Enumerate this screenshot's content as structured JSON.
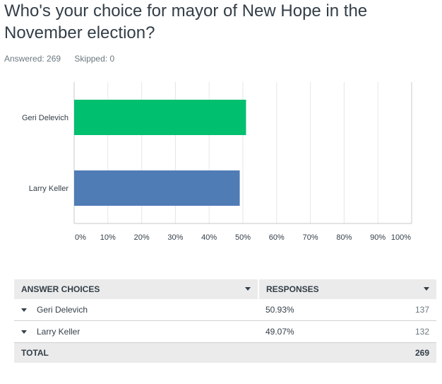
{
  "question": {
    "title": "Who's your choice for mayor of New Hope in the November election?",
    "answered": "Answered: 269",
    "skipped": "Skipped: 0"
  },
  "chart_data": {
    "type": "bar",
    "orientation": "horizontal",
    "categories": [
      "Geri Delevich",
      "Larry Keller"
    ],
    "values": [
      50.93,
      49.07
    ],
    "colors": [
      "#00bf6f",
      "#507cb6"
    ],
    "xlim": [
      0,
      100
    ],
    "xticks": [
      "0%",
      "10%",
      "20%",
      "30%",
      "40%",
      "50%",
      "60%",
      "70%",
      "80%",
      "90%",
      "100%"
    ],
    "grid": true
  },
  "table": {
    "header_choices": "ANSWER CHOICES",
    "header_responses": "RESPONSES",
    "rows": [
      {
        "choice": "Geri Delevich",
        "percent": "50.93%",
        "count": "137"
      },
      {
        "choice": "Larry Keller",
        "percent": "49.07%",
        "count": "132"
      }
    ],
    "total_label": "TOTAL",
    "total_count": "269"
  }
}
